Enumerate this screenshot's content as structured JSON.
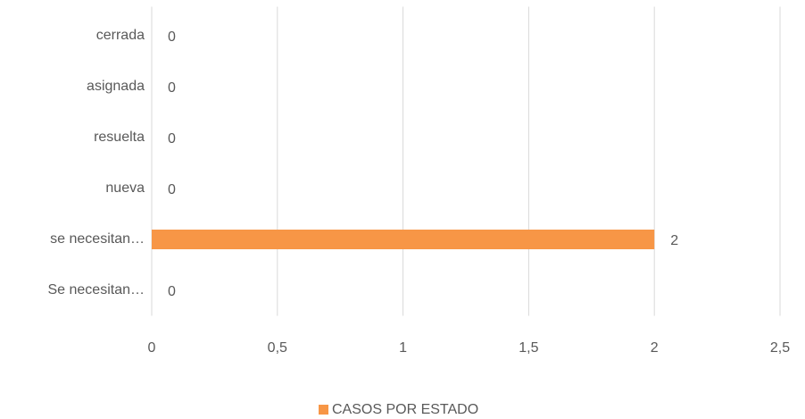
{
  "chart_data": {
    "type": "barh",
    "categories": [
      "cerrada",
      "asignada",
      "resuelta",
      "nueva",
      "se necesitan…",
      "Se necesitan…"
    ],
    "series": [
      {
        "name": "CASOS POR ESTADO",
        "color": "#f79646",
        "values": [
          0,
          0,
          0,
          0,
          2,
          0
        ]
      }
    ],
    "xlim": [
      0,
      2.5
    ],
    "xticks": [
      0,
      {
        "value": 0.5,
        "label": "0,5"
      },
      1,
      {
        "value": 1.5,
        "label": "1,5"
      },
      2,
      {
        "value": 2.5,
        "label": "2,5"
      }
    ],
    "grid": true,
    "legend": "bottom"
  }
}
